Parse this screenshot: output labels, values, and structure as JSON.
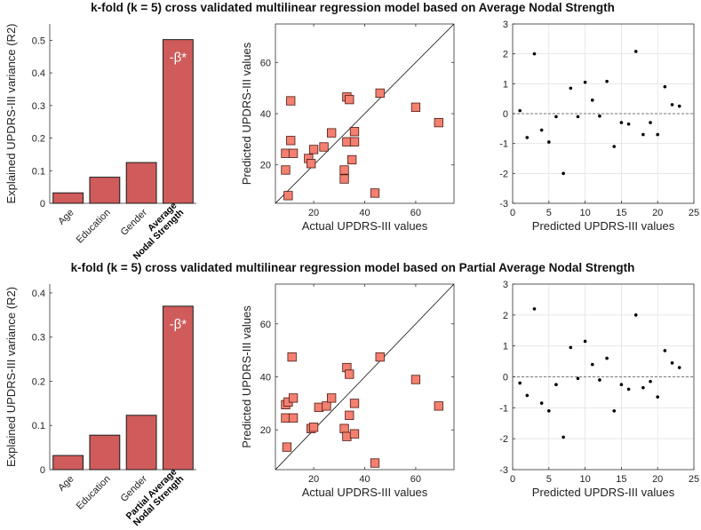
{
  "chart_data": [
    {
      "type": "bar",
      "title": "k-fold (k = 5) cross validated multilinear regression model based on Average Nodal Strength",
      "ylabel": "Explained UPDRS-III variance (R2)",
      "ylim": [
        0,
        0.55
      ],
      "yticks": [
        0,
        0.1,
        0.2,
        0.3,
        0.4,
        0.5
      ],
      "ytick_labels": [
        "0",
        "0.1",
        "0.2",
        "0.3",
        "0.4",
        "0.5"
      ],
      "categories": [
        "Age",
        "Education",
        "Gender",
        "Average\nNodal Strength"
      ],
      "values": [
        0.032,
        0.08,
        0.125,
        0.502
      ],
      "annotation": "-β*",
      "color": "#cf5b5b"
    },
    {
      "type": "scatter",
      "xlabel": "Actual UPDRS-III values",
      "ylabel": "Predicted UPDRS-III values",
      "xlim": [
        5,
        75
      ],
      "ylim": [
        5,
        75
      ],
      "xticks": [
        20,
        40,
        60
      ],
      "yticks": [
        20,
        40,
        60
      ],
      "x": [
        9,
        9,
        10,
        11,
        11,
        12,
        18,
        19,
        20,
        24,
        27,
        32,
        32,
        33,
        33,
        34,
        35,
        36,
        36,
        44,
        46,
        60,
        69
      ],
      "y": [
        18,
        24.5,
        8,
        45,
        29.5,
        24.5,
        22.5,
        20.5,
        26,
        27,
        32.5,
        14.5,
        18,
        46.5,
        29,
        45.5,
        22,
        33,
        29,
        9,
        48,
        42.5,
        36.5
      ],
      "marker_color": "#f38070",
      "identity_line": true
    },
    {
      "type": "scatter",
      "xlabel": "Predicted UPDRS-III values",
      "xlim": [
        0,
        25
      ],
      "ylim": [
        -3,
        3
      ],
      "xticks": [
        0,
        5,
        10,
        15,
        20,
        25
      ],
      "yticks": [
        -3,
        -2,
        -1,
        0,
        1,
        2,
        3
      ],
      "x": [
        1,
        2,
        3,
        4,
        5,
        6,
        7,
        8,
        9,
        10,
        11,
        12,
        13,
        14,
        15,
        16,
        17,
        18,
        19,
        20,
        21,
        22,
        23
      ],
      "y": [
        0.1,
        -0.8,
        2.0,
        -0.55,
        -0.95,
        -0.1,
        -2.0,
        0.85,
        -0.1,
        1.05,
        0.45,
        -0.08,
        1.08,
        -1.1,
        -0.3,
        -0.35,
        2.08,
        -0.7,
        -0.3,
        -0.7,
        0.9,
        0.3,
        0.25
      ],
      "zero_line": true,
      "grid": true
    },
    {
      "type": "bar",
      "title": "k-fold (k = 5) cross validated multilinear regression model based on Partial Average Nodal Strength",
      "ylabel": "Explained UPDRS-III variance (R2)",
      "ylim": [
        0,
        0.42
      ],
      "yticks": [
        0,
        0.1,
        0.2,
        0.3,
        0.4
      ],
      "ytick_labels": [
        "0",
        "0.1",
        "0.2",
        "0.3",
        "0.4"
      ],
      "categories": [
        "Age",
        "Education",
        "Gender",
        "Partial Average\nNodal Strength"
      ],
      "values": [
        0.032,
        0.078,
        0.123,
        0.37
      ],
      "annotation": "-β*",
      "color": "#cf5b5b"
    },
    {
      "type": "scatter",
      "xlabel": "Actual UPDRS-III values",
      "ylabel": "Predicted UPDRS-III values",
      "xlim": [
        5,
        75
      ],
      "ylim": [
        5,
        75
      ],
      "xticks": [
        20,
        40,
        60
      ],
      "yticks": [
        20,
        40,
        60
      ],
      "x": [
        9,
        9,
        9.5,
        10,
        11.5,
        12,
        12,
        19,
        20,
        22,
        25,
        27,
        32,
        33,
        33,
        34,
        34,
        36,
        36,
        44,
        46,
        60,
        69
      ],
      "y": [
        29.5,
        24.5,
        13.5,
        30.5,
        47.5,
        32,
        24.5,
        20.5,
        21,
        28.5,
        29,
        32,
        20.5,
        43.5,
        17.5,
        25.5,
        41,
        18.5,
        30,
        7.5,
        47.5,
        39,
        29
      ],
      "marker_color": "#f38070",
      "identity_line": true
    },
    {
      "type": "scatter",
      "xlabel": "Predicted UPDRS-III values",
      "xlim": [
        0,
        25
      ],
      "ylim": [
        -3,
        3
      ],
      "xticks": [
        0,
        5,
        10,
        15,
        20,
        25
      ],
      "yticks": [
        -3,
        -2,
        -1,
        0,
        1,
        2,
        3
      ],
      "x": [
        1,
        2,
        3,
        4,
        5,
        6,
        7,
        8,
        9,
        10,
        11,
        12,
        13,
        14,
        15,
        16,
        17,
        18,
        19,
        20,
        21,
        22,
        23
      ],
      "y": [
        -0.2,
        -0.6,
        2.2,
        -0.85,
        -1.1,
        -0.25,
        -1.95,
        0.95,
        -0.05,
        1.15,
        0.4,
        -0.1,
        0.6,
        -1.1,
        -0.25,
        -0.4,
        2.0,
        -0.35,
        -0.15,
        -0.65,
        0.85,
        0.45,
        0.3
      ],
      "zero_line": true,
      "grid": true
    }
  ]
}
